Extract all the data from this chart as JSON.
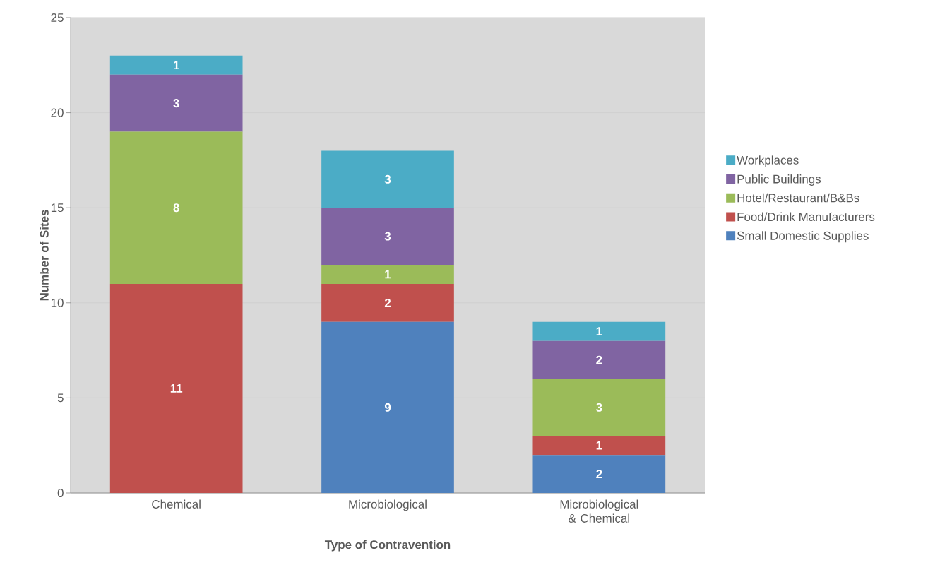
{
  "chart_data": {
    "type": "bar",
    "stacked": true,
    "xlabel": "Type of Contravention",
    "ylabel": "Number of Sites",
    "categories": [
      "Chemical",
      "Microbiological",
      "Microbiological & Chemical"
    ],
    "series": [
      {
        "name": "Small Domestic Supplies",
        "color": "#4f81bd",
        "values": [
          0,
          9,
          2
        ],
        "value_labels": [
          null,
          "9",
          "2"
        ]
      },
      {
        "name": "Food/Drink Manufacturers",
        "color": "#c0504d",
        "values": [
          11,
          2,
          1
        ],
        "value_labels": [
          "11",
          "2",
          "1"
        ]
      },
      {
        "name": "Hotel/Restaurant/B&Bs",
        "color": "#9bbb59",
        "values": [
          8,
          1,
          3
        ],
        "value_labels": [
          "8",
          "1",
          "3"
        ]
      },
      {
        "name": "Public Buildings",
        "color": "#8064a2",
        "values": [
          3,
          3,
          2
        ],
        "value_labels": [
          "3",
          "3",
          "2"
        ]
      },
      {
        "name": "Workplaces",
        "color": "#4bacc6",
        "values": [
          1,
          3,
          1
        ],
        "value_labels": [
          "1",
          "3",
          "1"
        ]
      }
    ],
    "ylim": [
      0,
      25
    ],
    "yticks": [
      0,
      5,
      10,
      15,
      20,
      25
    ],
    "grid": "y",
    "legend": "right"
  }
}
